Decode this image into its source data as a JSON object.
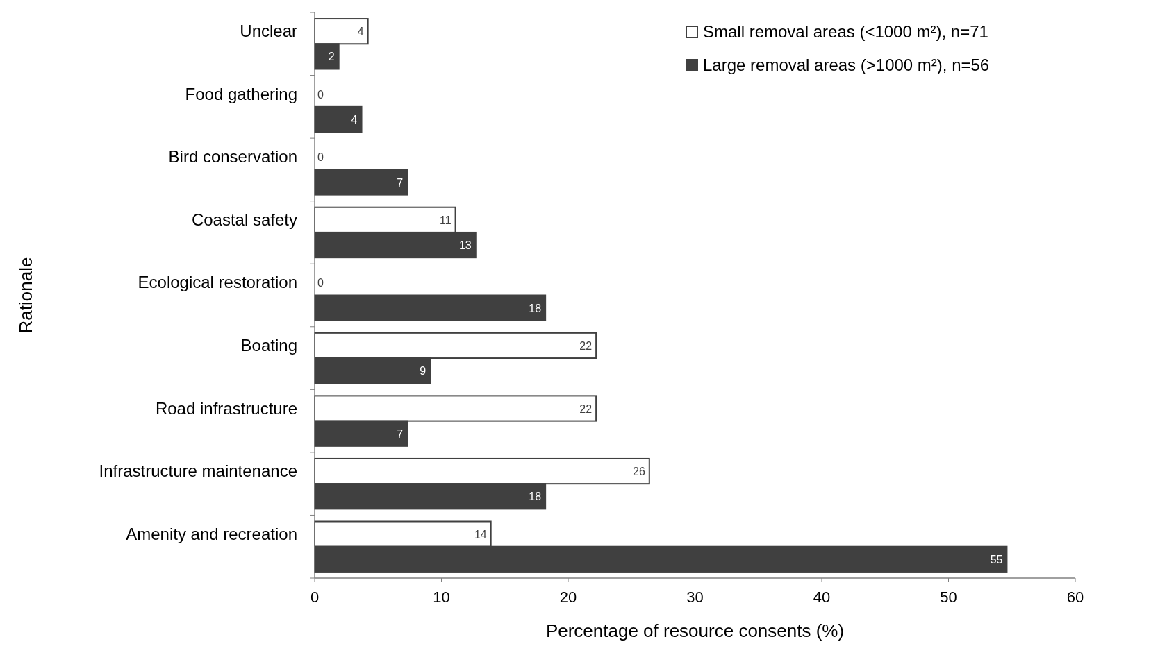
{
  "chart_data": {
    "type": "bar",
    "orientation": "horizontal",
    "xlabel": "Percentage of resource consents (%)",
    "ylabel": "Rationale",
    "categories": [
      "Unclear",
      "Food gathering",
      "Bird conservation",
      "Coastal safety",
      "Ecological restoration",
      "Boating",
      "Road infrastructure",
      "Infrastructure maintenance",
      "Amenity and recreation"
    ],
    "series": [
      {
        "name": "Small removal areas (<1000 m²), n=71",
        "color": "#ffffff",
        "values": [
          4.2,
          0,
          0,
          11.1,
          0,
          22.2,
          22.2,
          26.4,
          13.9
        ],
        "value_labels": [
          "4",
          "0",
          "0",
          "11",
          "0",
          "22",
          "22",
          "26",
          "14"
        ]
      },
      {
        "name": "Large removal areas (>1000 m²), n=56",
        "color": "#404040",
        "values": [
          1.9,
          3.7,
          7.3,
          12.7,
          18.2,
          9.1,
          7.3,
          18.2,
          54.6
        ],
        "value_labels": [
          "2",
          "4",
          "7",
          "13",
          "18",
          "9",
          "7",
          "18",
          "55"
        ]
      }
    ],
    "xlim": [
      0,
      60
    ],
    "xticks": [
      0,
      10,
      20,
      30,
      40,
      50,
      60
    ],
    "legend": "top right",
    "grid": false
  }
}
